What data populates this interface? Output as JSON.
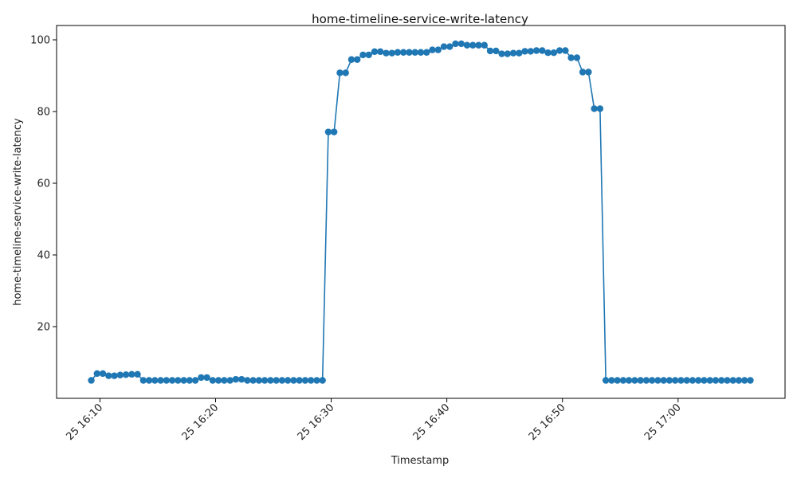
{
  "chart_data": {
    "type": "line",
    "title": "home-timeline-service-write-latency",
    "xlabel": "Timestamp",
    "ylabel": "home-timeline-service-write-latency",
    "color": "#1f77b4",
    "grid": false,
    "legend": "none",
    "xlim": [
      "2024-06-25 16:06:15",
      "2024-06-25 17:09:15"
    ],
    "ylim": [
      0,
      104
    ],
    "x_ticks": [
      {
        "at": "2024-06-25 16:10:00",
        "label": "25 16:10"
      },
      {
        "at": "2024-06-25 16:20:00",
        "label": "25 16:20"
      },
      {
        "at": "2024-06-25 16:30:00",
        "label": "25 16:30"
      },
      {
        "at": "2024-06-25 16:40:00",
        "label": "25 16:40"
      },
      {
        "at": "2024-06-25 16:50:00",
        "label": "25 16:50"
      },
      {
        "at": "2024-06-25 17:00:00",
        "label": "25 17:00"
      }
    ],
    "y_ticks": [
      20,
      40,
      60,
      80,
      100
    ],
    "series": [
      {
        "points": [
          [
            "2024-06-25 16:09:15",
            5.0
          ],
          [
            "2024-06-25 16:09:45",
            6.9
          ],
          [
            "2024-06-25 16:10:15",
            6.9
          ],
          [
            "2024-06-25 16:10:45",
            6.3
          ],
          [
            "2024-06-25 16:11:15",
            6.3
          ],
          [
            "2024-06-25 16:11:45",
            6.5
          ],
          [
            "2024-06-25 16:12:15",
            6.6
          ],
          [
            "2024-06-25 16:12:45",
            6.7
          ],
          [
            "2024-06-25 16:13:15",
            6.7
          ],
          [
            "2024-06-25 16:13:45",
            5.0
          ],
          [
            "2024-06-25 16:14:15",
            5.0
          ],
          [
            "2024-06-25 16:14:45",
            5.0
          ],
          [
            "2024-06-25 16:15:15",
            5.0
          ],
          [
            "2024-06-25 16:15:45",
            5.0
          ],
          [
            "2024-06-25 16:16:15",
            5.0
          ],
          [
            "2024-06-25 16:16:45",
            5.0
          ],
          [
            "2024-06-25 16:17:15",
            5.0
          ],
          [
            "2024-06-25 16:17:45",
            5.0
          ],
          [
            "2024-06-25 16:18:15",
            5.0
          ],
          [
            "2024-06-25 16:18:45",
            5.8
          ],
          [
            "2024-06-25 16:19:15",
            5.8
          ],
          [
            "2024-06-25 16:19:45",
            5.0
          ],
          [
            "2024-06-25 16:20:15",
            5.0
          ],
          [
            "2024-06-25 16:20:45",
            5.0
          ],
          [
            "2024-06-25 16:21:15",
            5.0
          ],
          [
            "2024-06-25 16:21:45",
            5.3
          ],
          [
            "2024-06-25 16:22:15",
            5.3
          ],
          [
            "2024-06-25 16:22:45",
            5.0
          ],
          [
            "2024-06-25 16:23:15",
            5.0
          ],
          [
            "2024-06-25 16:23:45",
            5.0
          ],
          [
            "2024-06-25 16:24:15",
            5.0
          ],
          [
            "2024-06-25 16:24:45",
            5.0
          ],
          [
            "2024-06-25 16:25:15",
            5.0
          ],
          [
            "2024-06-25 16:25:45",
            5.0
          ],
          [
            "2024-06-25 16:26:15",
            5.0
          ],
          [
            "2024-06-25 16:26:45",
            5.0
          ],
          [
            "2024-06-25 16:27:15",
            5.0
          ],
          [
            "2024-06-25 16:27:45",
            5.0
          ],
          [
            "2024-06-25 16:28:15",
            5.0
          ],
          [
            "2024-06-25 16:28:45",
            5.0
          ],
          [
            "2024-06-25 16:29:15",
            5.0
          ],
          [
            "2024-06-25 16:29:45",
            74.3
          ],
          [
            "2024-06-25 16:30:15",
            74.3
          ],
          [
            "2024-06-25 16:30:45",
            90.8
          ],
          [
            "2024-06-25 16:31:15",
            90.8
          ],
          [
            "2024-06-25 16:31:45",
            94.5
          ],
          [
            "2024-06-25 16:32:15",
            94.5
          ],
          [
            "2024-06-25 16:32:45",
            95.8
          ],
          [
            "2024-06-25 16:33:15",
            95.8
          ],
          [
            "2024-06-25 16:33:45",
            96.7
          ],
          [
            "2024-06-25 16:34:15",
            96.7
          ],
          [
            "2024-06-25 16:34:45",
            96.3
          ],
          [
            "2024-06-25 16:35:15",
            96.3
          ],
          [
            "2024-06-25 16:35:45",
            96.5
          ],
          [
            "2024-06-25 16:36:15",
            96.5
          ],
          [
            "2024-06-25 16:36:45",
            96.5
          ],
          [
            "2024-06-25 16:37:15",
            96.5
          ],
          [
            "2024-06-25 16:37:45",
            96.5
          ],
          [
            "2024-06-25 16:38:15",
            96.5
          ],
          [
            "2024-06-25 16:38:45",
            97.2
          ],
          [
            "2024-06-25 16:39:15",
            97.2
          ],
          [
            "2024-06-25 16:39:45",
            98.1
          ],
          [
            "2024-06-25 16:40:15",
            98.1
          ],
          [
            "2024-06-25 16:40:45",
            98.9
          ],
          [
            "2024-06-25 16:41:15",
            98.9
          ],
          [
            "2024-06-25 16:41:45",
            98.5
          ],
          [
            "2024-06-25 16:42:15",
            98.5
          ],
          [
            "2024-06-25 16:42:45",
            98.5
          ],
          [
            "2024-06-25 16:43:15",
            98.5
          ],
          [
            "2024-06-25 16:43:45",
            96.9
          ],
          [
            "2024-06-25 16:44:15",
            96.9
          ],
          [
            "2024-06-25 16:44:45",
            96.1
          ],
          [
            "2024-06-25 16:45:15",
            96.1
          ],
          [
            "2024-06-25 16:45:45",
            96.3
          ],
          [
            "2024-06-25 16:46:15",
            96.3
          ],
          [
            "2024-06-25 16:46:45",
            96.8
          ],
          [
            "2024-06-25 16:47:15",
            96.8
          ],
          [
            "2024-06-25 16:47:45",
            97.0
          ],
          [
            "2024-06-25 16:48:15",
            97.0
          ],
          [
            "2024-06-25 16:48:45",
            96.4
          ],
          [
            "2024-06-25 16:49:15",
            96.4
          ],
          [
            "2024-06-25 16:49:45",
            97.0
          ],
          [
            "2024-06-25 16:50:15",
            97.0
          ],
          [
            "2024-06-25 16:50:45",
            95.0
          ],
          [
            "2024-06-25 16:51:15",
            95.0
          ],
          [
            "2024-06-25 16:51:45",
            91.0
          ],
          [
            "2024-06-25 16:52:15",
            91.0
          ],
          [
            "2024-06-25 16:52:45",
            80.8
          ],
          [
            "2024-06-25 16:53:15",
            80.8
          ],
          [
            "2024-06-25 16:53:45",
            5.0
          ],
          [
            "2024-06-25 16:54:15",
            5.0
          ],
          [
            "2024-06-25 16:54:45",
            5.0
          ],
          [
            "2024-06-25 16:55:15",
            5.0
          ],
          [
            "2024-06-25 16:55:45",
            5.0
          ],
          [
            "2024-06-25 16:56:15",
            5.0
          ],
          [
            "2024-06-25 16:56:45",
            5.0
          ],
          [
            "2024-06-25 16:57:15",
            5.0
          ],
          [
            "2024-06-25 16:57:45",
            5.0
          ],
          [
            "2024-06-25 16:58:15",
            5.0
          ],
          [
            "2024-06-25 16:58:45",
            5.0
          ],
          [
            "2024-06-25 16:59:15",
            5.0
          ],
          [
            "2024-06-25 16:59:45",
            5.0
          ],
          [
            "2024-06-25 17:00:15",
            5.0
          ],
          [
            "2024-06-25 17:00:45",
            5.0
          ],
          [
            "2024-06-25 17:01:15",
            5.0
          ],
          [
            "2024-06-25 17:01:45",
            5.0
          ],
          [
            "2024-06-25 17:02:15",
            5.0
          ],
          [
            "2024-06-25 17:02:45",
            5.0
          ],
          [
            "2024-06-25 17:03:15",
            5.0
          ],
          [
            "2024-06-25 17:03:45",
            5.0
          ],
          [
            "2024-06-25 17:04:15",
            5.0
          ],
          [
            "2024-06-25 17:04:45",
            5.0
          ],
          [
            "2024-06-25 17:05:15",
            5.0
          ],
          [
            "2024-06-25 17:05:45",
            5.0
          ],
          [
            "2024-06-25 17:06:15",
            5.0
          ]
        ]
      }
    ]
  }
}
